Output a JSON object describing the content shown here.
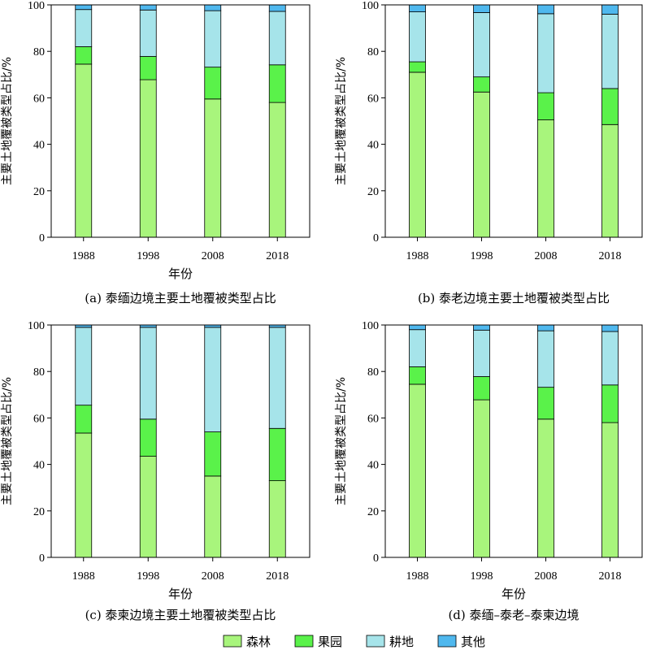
{
  "figure": {
    "legend": [
      {
        "name": "森林",
        "color": "#a8f57c"
      },
      {
        "name": "果园",
        "color": "#5af24a"
      },
      {
        "name": "耕地",
        "color": "#a6e4ea"
      },
      {
        "name": "其他",
        "color": "#4fb8ee"
      }
    ]
  },
  "chart_data": [
    {
      "type": "bar",
      "stacked": true,
      "caption": "(a) 泰缅边境主要土地覆被类型占比",
      "xlabel": "年份",
      "ylabel": "主要土地覆被类型占比/%",
      "categories": [
        "1988",
        "1998",
        "2008",
        "2018"
      ],
      "ylim": [
        0,
        100
      ],
      "yticks": [
        "0",
        "20",
        "40",
        "60",
        "80",
        "100"
      ],
      "series": [
        {
          "name": "森林",
          "values": [
            74.5,
            67.8,
            59.5,
            58.0
          ]
        },
        {
          "name": "果园",
          "values": [
            7.5,
            10.0,
            13.7,
            16.2
          ]
        },
        {
          "name": "耕地",
          "values": [
            16.0,
            20.0,
            24.3,
            23.0
          ]
        },
        {
          "name": "其他",
          "values": [
            2.0,
            2.2,
            2.5,
            2.8
          ]
        }
      ]
    },
    {
      "type": "bar",
      "stacked": true,
      "caption": "(b) 泰老边境主要土地覆被类型占比",
      "xlabel": "",
      "ylabel": "主要土地覆被类型占比/%",
      "categories": [
        "1988",
        "1998",
        "2008",
        "2018"
      ],
      "ylim": [
        0,
        100
      ],
      "yticks": [
        "0",
        "20",
        "40",
        "60",
        "80",
        "100"
      ],
      "series": [
        {
          "name": "森林",
          "values": [
            71.0,
            62.5,
            50.5,
            48.5
          ]
        },
        {
          "name": "果园",
          "values": [
            4.5,
            6.5,
            11.7,
            15.5
          ]
        },
        {
          "name": "耕地",
          "values": [
            21.5,
            27.7,
            34.0,
            32.0
          ]
        },
        {
          "name": "其他",
          "values": [
            3.0,
            3.3,
            3.8,
            4.0
          ]
        }
      ]
    },
    {
      "type": "bar",
      "stacked": true,
      "caption": "(c) 泰柬边境主要土地覆被类型占比",
      "xlabel": "年份",
      "ylabel": "主要土地覆被类型占比/%",
      "categories": [
        "1988",
        "1998",
        "2008",
        "2018"
      ],
      "ylim": [
        0,
        100
      ],
      "yticks": [
        "0",
        "20",
        "40",
        "60",
        "80",
        "100"
      ],
      "series": [
        {
          "name": "森林",
          "values": [
            53.5,
            43.5,
            35.0,
            33.0
          ]
        },
        {
          "name": "果园",
          "values": [
            12.0,
            16.0,
            19.0,
            22.5
          ]
        },
        {
          "name": "耕地",
          "values": [
            33.5,
            39.5,
            45.0,
            43.5
          ]
        },
        {
          "name": "其他",
          "values": [
            1.0,
            1.0,
            1.0,
            1.0
          ]
        }
      ]
    },
    {
      "type": "bar",
      "stacked": true,
      "caption": "(d) 泰缅–泰老–泰柬边境",
      "xlabel": "年份",
      "ylabel": "主要土地覆被类型占比/%",
      "categories": [
        "1988",
        "1998",
        "2008",
        "2018"
      ],
      "ylim": [
        0,
        100
      ],
      "yticks": [
        "0",
        "20",
        "40",
        "60",
        "80",
        "100"
      ],
      "series": [
        {
          "name": "森林",
          "values": [
            74.5,
            67.8,
            59.5,
            58.0
          ]
        },
        {
          "name": "果园",
          "values": [
            7.5,
            10.0,
            13.7,
            16.2
          ]
        },
        {
          "name": "耕地",
          "values": [
            16.0,
            20.0,
            24.3,
            23.0
          ]
        },
        {
          "name": "其他",
          "values": [
            2.0,
            2.2,
            2.5,
            2.8
          ]
        }
      ]
    }
  ]
}
